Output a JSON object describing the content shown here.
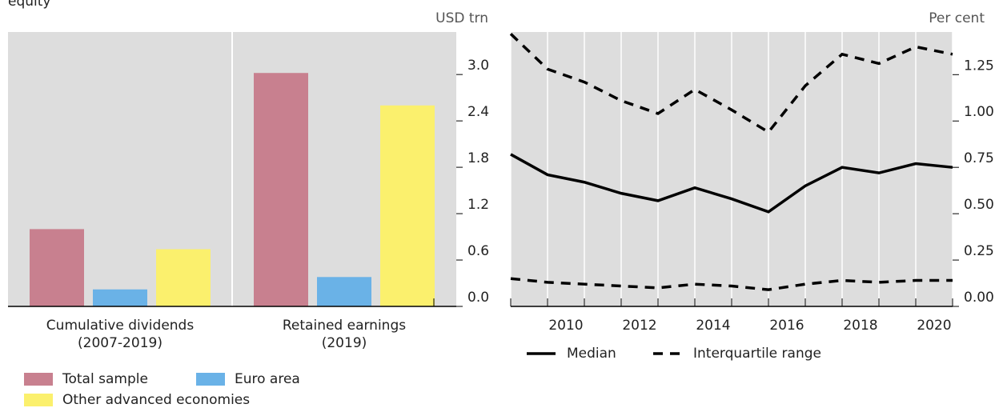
{
  "title": "equity",
  "chart_data": [
    {
      "type": "bar",
      "axis_label": "USD trn",
      "categories": [
        [
          "Cumulative dividends",
          "(2007-2019)"
        ],
        [
          "Retained earnings",
          "(2019)"
        ]
      ],
      "series": [
        {
          "name": "Total sample",
          "color": "#c8808f",
          "values": [
            1.0,
            3.02
          ]
        },
        {
          "name": "Euro area",
          "color": "#6ab2e7",
          "values": [
            0.22,
            0.38
          ]
        },
        {
          "name": "Other advanced economies",
          "color": "#fbf06d",
          "values": [
            0.74,
            2.6
          ]
        }
      ],
      "ylim": [
        0,
        3.55
      ],
      "yticks": [
        {
          "value": 0,
          "label": "0.0"
        },
        0.6,
        1.2,
        1.8,
        2.4,
        {
          "value": 3,
          "label": "3.0"
        }
      ]
    },
    {
      "type": "line",
      "axis_label": "Per cent",
      "x": [
        2008.5,
        2009.5,
        2010.5,
        2011.5,
        2012.5,
        2013.5,
        2014.5,
        2015.5,
        2016.5,
        2017.5,
        2018.5,
        2019.5,
        2020.5
      ],
      "series": [
        {
          "name": "Median",
          "color": "#000000",
          "style": "solid",
          "values": [
            0.82,
            0.71,
            0.67,
            0.61,
            0.57,
            0.64,
            0.58,
            0.51,
            0.65,
            0.75,
            0.72,
            0.77,
            0.75
          ]
        },
        {
          "name": "Interquartile range",
          "color": "#000000",
          "style": "dashed",
          "values": [
            1.47,
            1.28,
            1.21,
            1.11,
            1.04,
            1.17,
            1.06,
            0.94,
            1.19,
            1.36,
            1.31,
            1.4,
            1.36
          ],
          "values_low": [
            0.15,
            0.13,
            0.12,
            0.11,
            0.1,
            0.12,
            0.11,
            0.09,
            0.12,
            0.14,
            0.13,
            0.14,
            0.14
          ]
        }
      ],
      "xlim": [
        2008.5,
        2020.5
      ],
      "xticks": [
        2010,
        2012,
        2014,
        2016,
        2018,
        2020
      ],
      "ylim": [
        0,
        1.48
      ],
      "yticks": [
        {
          "value": 0,
          "label": "0.00"
        },
        0.25,
        {
          "value": 0.5,
          "label": "0.50"
        },
        0.75,
        {
          "value": 1,
          "label": "1.00"
        },
        1.25
      ]
    }
  ]
}
